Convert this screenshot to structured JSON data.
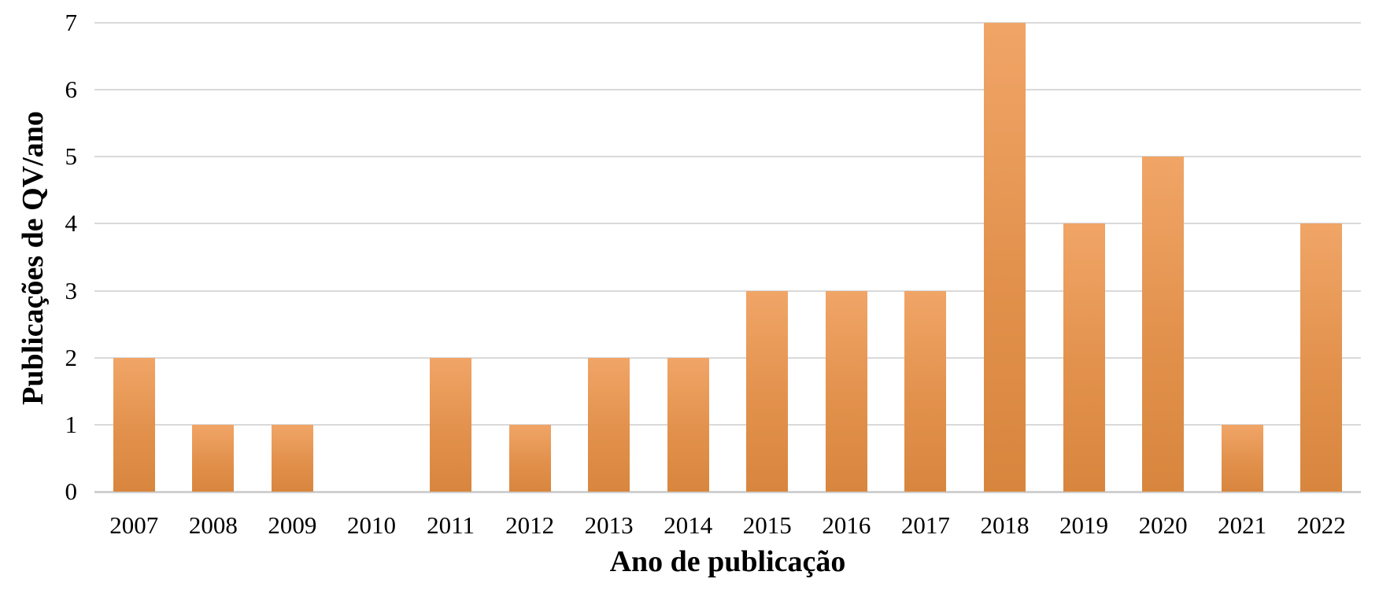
{
  "chart_data": {
    "type": "bar",
    "xlabel": "Ano de publicação",
    "ylabel": "Publicações de QV/ano",
    "categories": [
      "2007",
      "2008",
      "2009",
      "2010",
      "2011",
      "2012",
      "2013",
      "2014",
      "2015",
      "2016",
      "2017",
      "2018",
      "2019",
      "2020",
      "2021",
      "2022"
    ],
    "values": [
      2,
      1,
      1,
      0,
      2,
      1,
      2,
      2,
      3,
      3,
      3,
      7,
      4,
      5,
      1,
      4
    ],
    "ylim": [
      0,
      7
    ],
    "yticks": [
      0,
      1,
      2,
      3,
      4,
      5,
      6,
      7
    ],
    "grid": "horizontal",
    "legend": "none",
    "colors": {
      "bar_top": "#f0a567",
      "bar_bottom": "#d8863e",
      "gridline": "#d9d9d9",
      "axis_line": "#d0d0d0",
      "text": "#000000"
    }
  }
}
